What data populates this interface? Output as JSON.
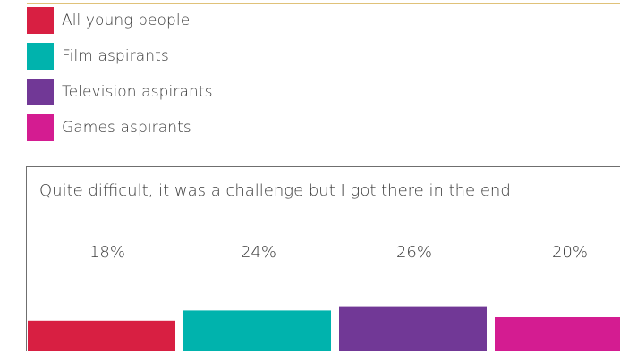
{
  "chart_data": {
    "type": "bar",
    "title": "Quite difficult, it was a challenge but I got there in the end",
    "categories": [
      "All young people",
      "Film aspirants",
      "Television aspirants",
      "Games aspirants"
    ],
    "values": [
      18,
      24,
      26,
      20
    ],
    "value_labels": [
      "18%",
      "24%",
      "26%",
      "20%"
    ],
    "colors": [
      "#d81f42",
      "#00b3ad",
      "#713896",
      "#d41c91"
    ],
    "legend": [
      {
        "label": "All young people",
        "color": "#d81f42"
      },
      {
        "label": "Film aspirants",
        "color": "#00b3ad"
      },
      {
        "label": "Television aspirants",
        "color": "#713896"
      },
      {
        "label": "Games aspirants",
        "color": "#d41c91"
      }
    ],
    "legend_position": "top-left",
    "grid": false,
    "ylim": [
      0,
      100
    ]
  }
}
